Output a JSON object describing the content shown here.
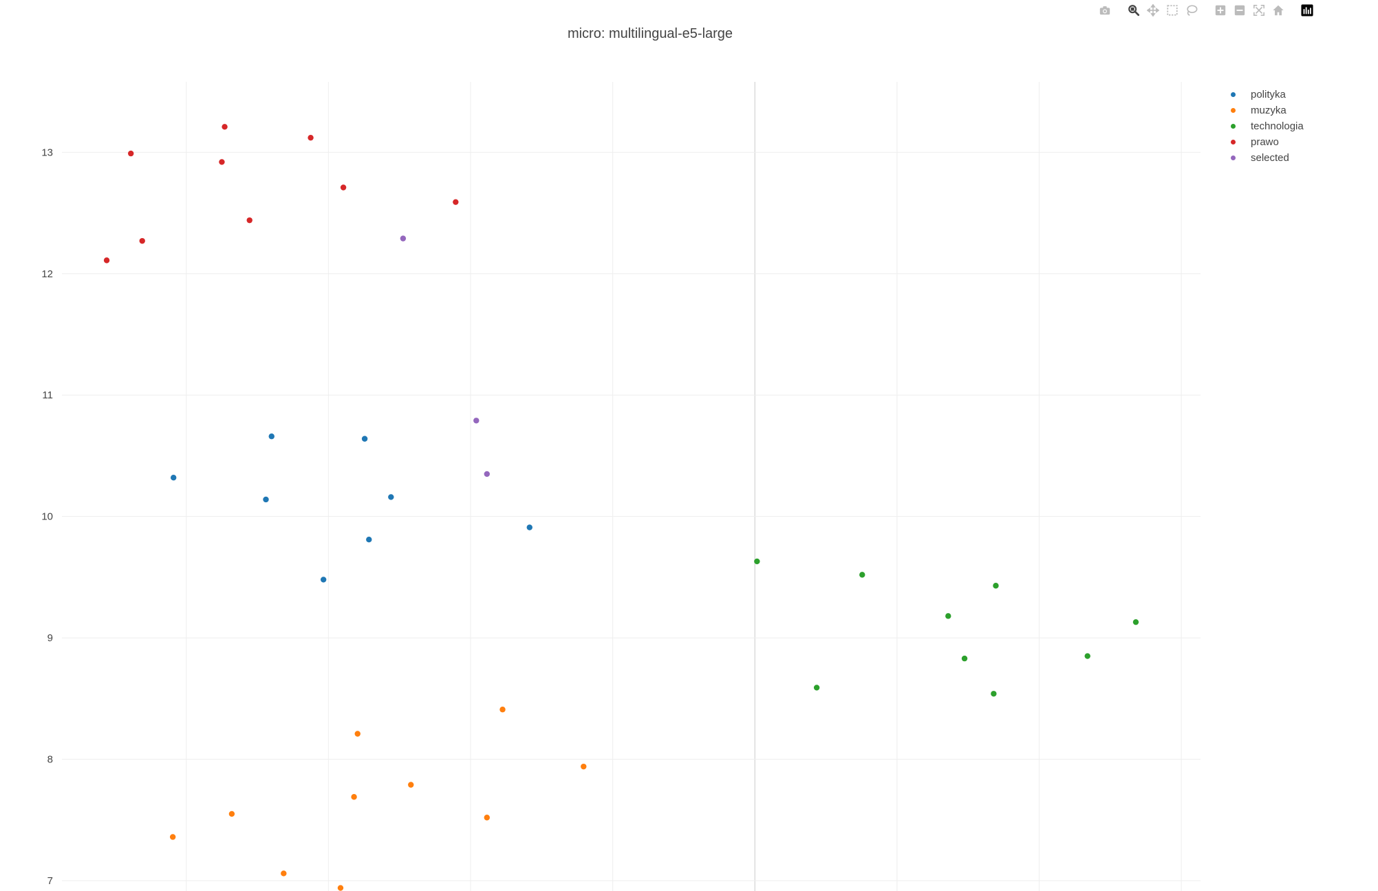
{
  "chart_data": {
    "type": "scatter",
    "title": "micro: multilingual-e5-large",
    "xlabel": "",
    "ylabel": "",
    "xlim": [
      -8.75,
      7.27
    ],
    "ylim": [
      6.83,
      13.58
    ],
    "yticks": [
      7,
      8,
      9,
      10,
      11,
      12,
      13
    ],
    "y_tick_labels": [
      "7",
      "8",
      "9",
      "10",
      "11",
      "12",
      "13"
    ],
    "x_gridlines": [
      -7,
      -5,
      -3,
      -1,
      1,
      3,
      5,
      7
    ],
    "x_zeroline": 1,
    "y_zeroline": null,
    "x_tick_labels_visible": false,
    "grid": true,
    "legend_position": "top-right",
    "series": [
      {
        "name": "polityka",
        "color": "#1f77b4",
        "points": [
          {
            "x": -7.18,
            "y": 10.32
          },
          {
            "x": -5.8,
            "y": 10.66
          },
          {
            "x": -5.88,
            "y": 10.14
          },
          {
            "x": -5.07,
            "y": 9.48
          },
          {
            "x": -4.49,
            "y": 10.64
          },
          {
            "x": -4.43,
            "y": 9.81
          },
          {
            "x": -4.12,
            "y": 10.16
          },
          {
            "x": -2.17,
            "y": 9.91
          }
        ]
      },
      {
        "name": "muzyka",
        "color": "#ff7f0e",
        "points": [
          {
            "x": -7.19,
            "y": 7.36
          },
          {
            "x": -6.36,
            "y": 7.55
          },
          {
            "x": -5.63,
            "y": 7.06
          },
          {
            "x": -4.64,
            "y": 7.69
          },
          {
            "x": -4.59,
            "y": 8.21
          },
          {
            "x": -4.83,
            "y": 6.94
          },
          {
            "x": -3.84,
            "y": 7.79
          },
          {
            "x": -2.77,
            "y": 7.52
          },
          {
            "x": -2.55,
            "y": 8.41
          },
          {
            "x": -1.41,
            "y": 7.94
          }
        ]
      },
      {
        "name": "technologia",
        "color": "#2ca02c",
        "points": [
          {
            "x": 1.03,
            "y": 9.63
          },
          {
            "x": 1.87,
            "y": 8.59
          },
          {
            "x": 2.51,
            "y": 9.52
          },
          {
            "x": 3.72,
            "y": 9.18
          },
          {
            "x": 3.95,
            "y": 8.83
          },
          {
            "x": 4.36,
            "y": 8.54
          },
          {
            "x": 4.39,
            "y": 9.43
          },
          {
            "x": 5.68,
            "y": 8.85
          },
          {
            "x": 6.36,
            "y": 9.13
          }
        ]
      },
      {
        "name": "prawo",
        "color": "#d62728",
        "points": [
          {
            "x": -8.12,
            "y": 12.11
          },
          {
            "x": -7.78,
            "y": 12.99
          },
          {
            "x": -7.62,
            "y": 12.27
          },
          {
            "x": -6.5,
            "y": 12.92
          },
          {
            "x": -6.46,
            "y": 13.21
          },
          {
            "x": -6.11,
            "y": 12.44
          },
          {
            "x": -5.25,
            "y": 13.12
          },
          {
            "x": -4.79,
            "y": 12.71
          },
          {
            "x": -3.21,
            "y": 12.59
          }
        ]
      },
      {
        "name": "selected",
        "color": "#9467bd",
        "points": [
          {
            "x": -3.95,
            "y": 12.29
          },
          {
            "x": -2.92,
            "y": 10.79
          },
          {
            "x": -2.77,
            "y": 10.35
          }
        ]
      }
    ]
  },
  "modebar": {
    "groups": [
      [
        "camera-icon"
      ],
      [
        "zoom-icon",
        "pan-icon",
        "box-select-icon",
        "lasso-select-icon"
      ],
      [
        "zoom-in-icon",
        "zoom-out-icon",
        "autoscale-icon",
        "reset-axes-icon"
      ],
      [
        "plotly-logo-icon"
      ]
    ],
    "active_color": "#444444",
    "inactive_color": "#bbbbbb"
  }
}
